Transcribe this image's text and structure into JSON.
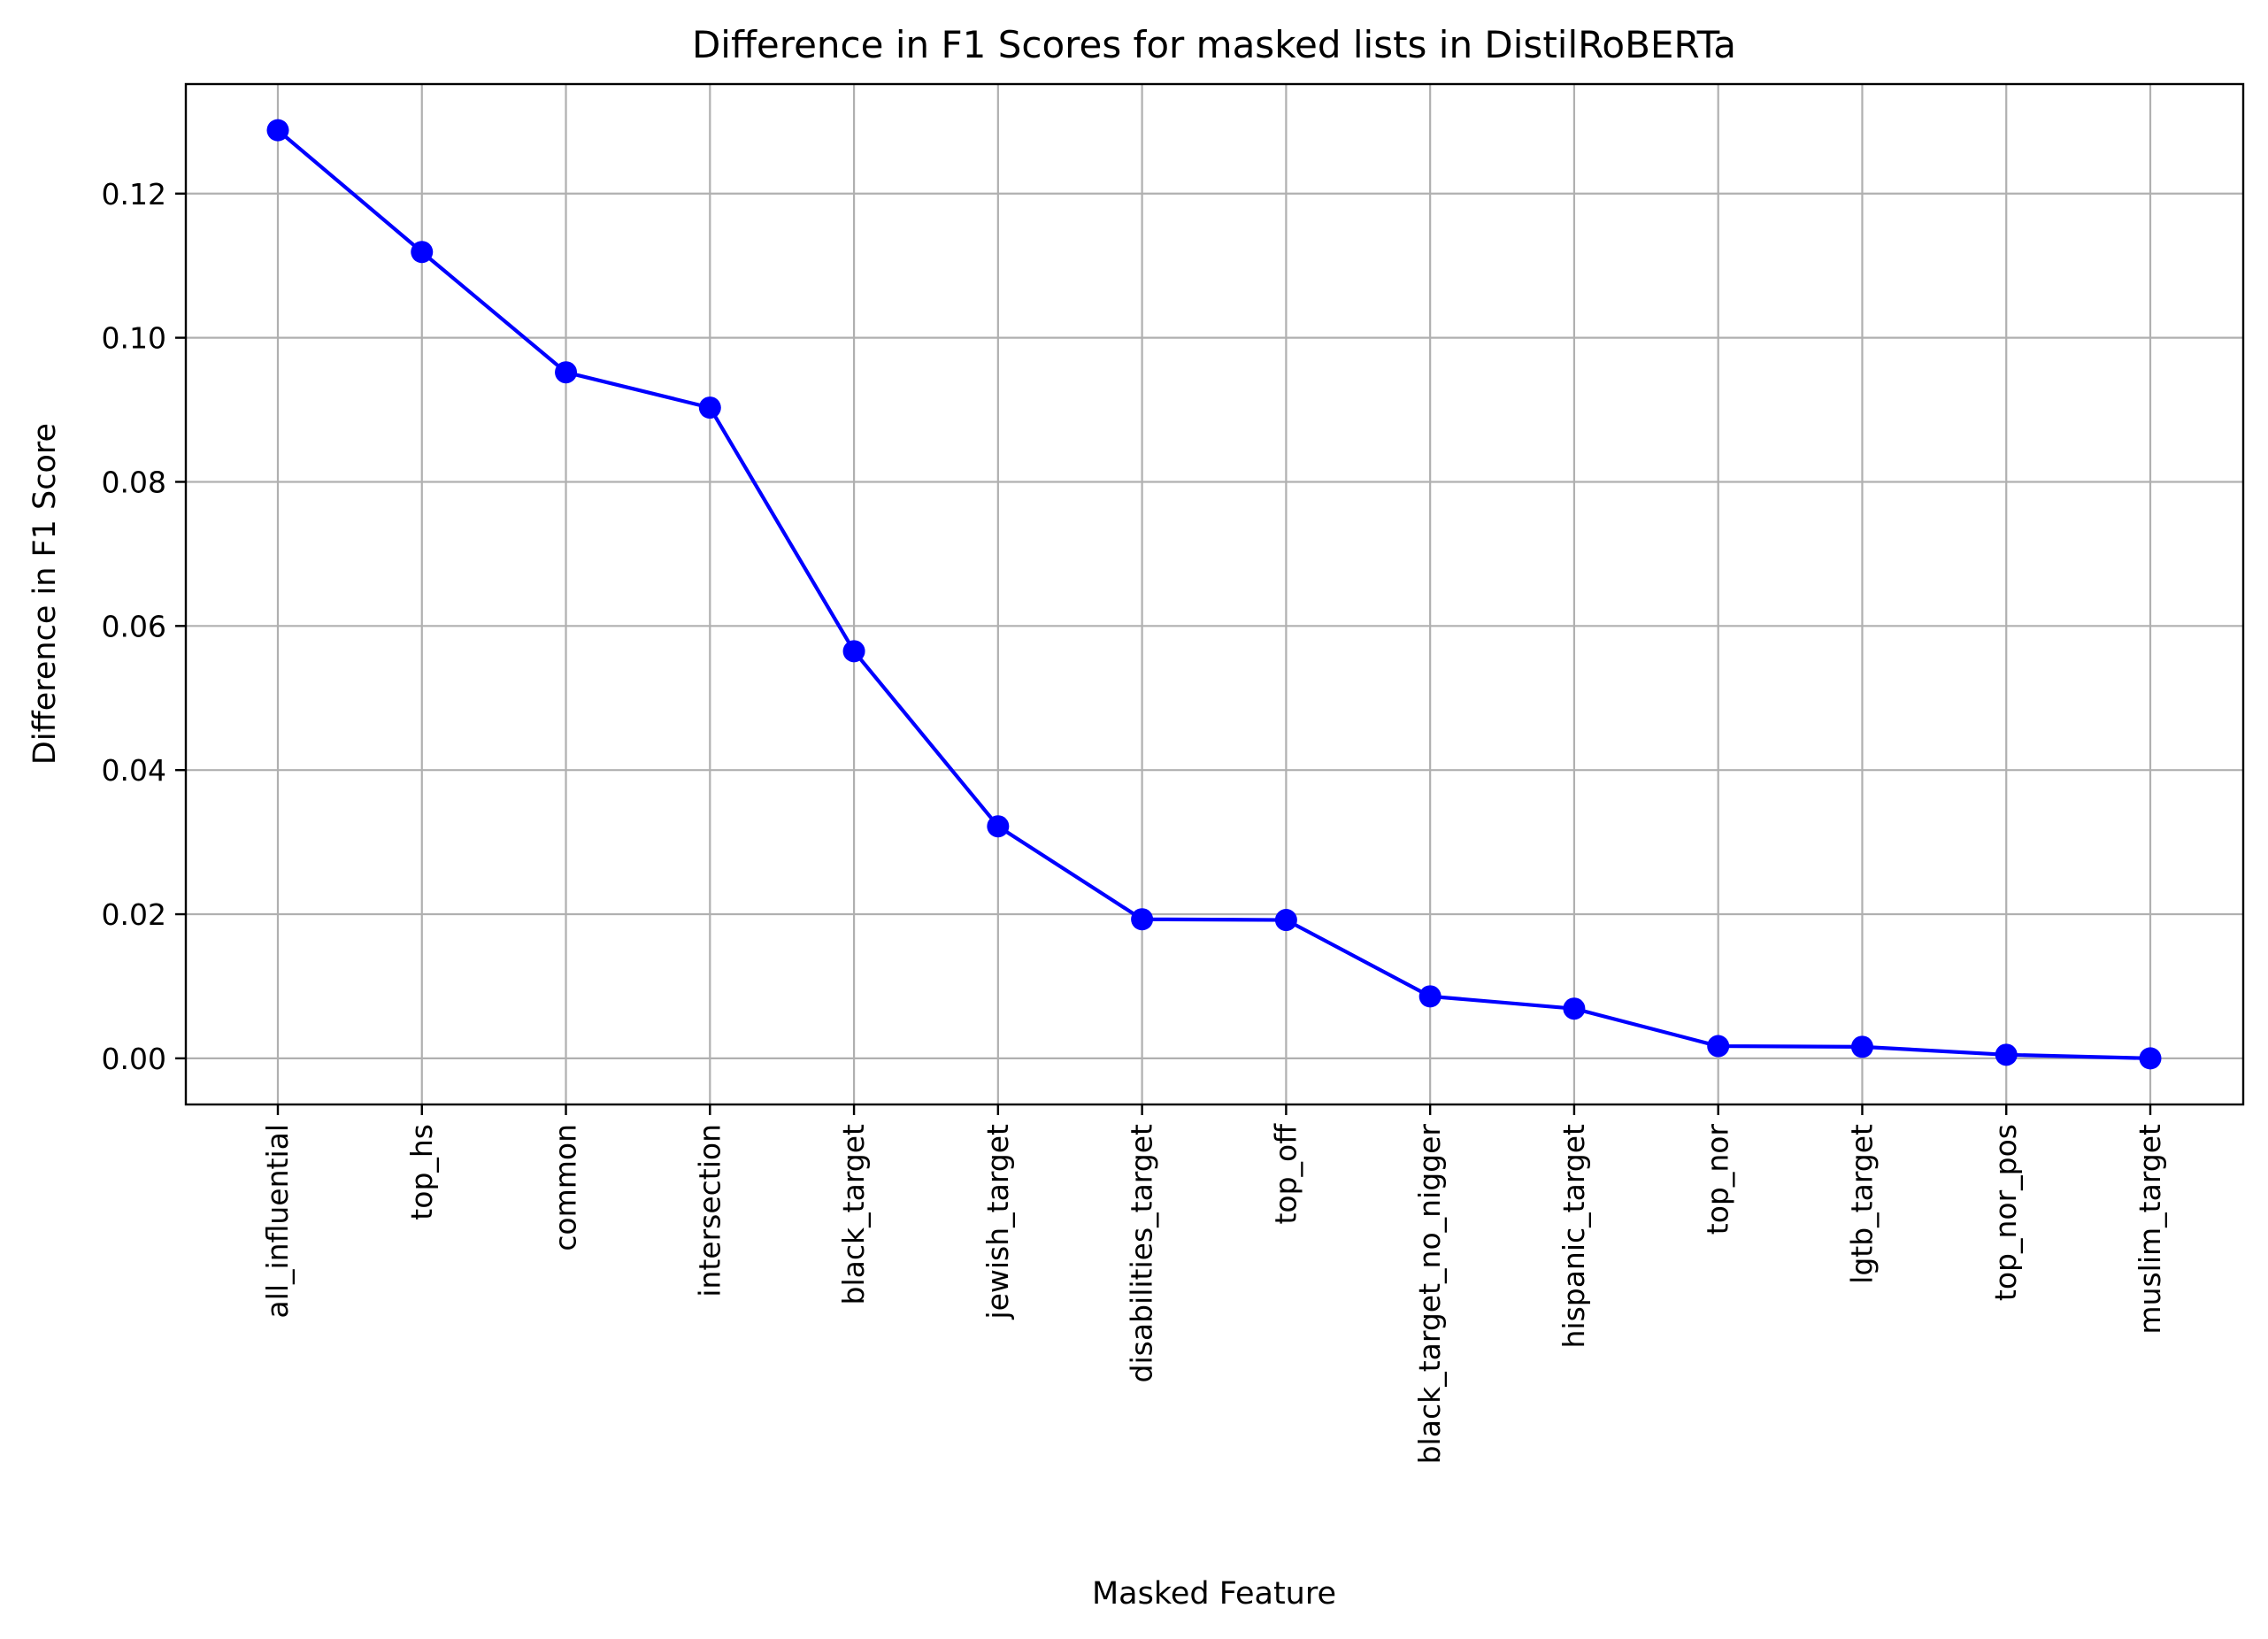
{
  "chart_data": {
    "type": "line",
    "title": "Difference in F1 Scores for masked lists in DistilRoBERTa",
    "xlabel": "Masked Feature",
    "ylabel": "Difference in F1 Score",
    "categories": [
      "all_influential",
      "top_hs",
      "common",
      "intersection",
      "black_target",
      "jewish_target",
      "disabilities_target",
      "top_off",
      "black_target_no_nigger",
      "hispanic_target",
      "top_nor",
      "lgtb_target",
      "top_nor_pos",
      "muslim_target"
    ],
    "series": [
      {
        "values": [
          0.1288,
          0.1119,
          0.0952,
          0.0903,
          0.0565,
          0.0322,
          0.0193,
          0.0192,
          0.0086,
          0.0069,
          0.0017,
          0.0016,
          0.0005,
          0.0
        ],
        "color": "#0000ff",
        "marker": "circle"
      }
    ],
    "yticks": [
      "0.00",
      "0.02",
      "0.04",
      "0.06",
      "0.08",
      "0.10",
      "0.12"
    ],
    "ylim": [
      -0.0064,
      0.1352
    ],
    "grid": true,
    "legend": "none"
  }
}
